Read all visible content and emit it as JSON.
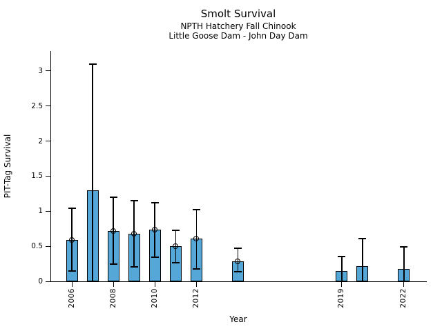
{
  "chart_data": {
    "type": "bar",
    "title": "Smolt Survival",
    "subtitle1": "NPTH Hatchery Fall Chinook",
    "subtitle2": "Little Goose Dam - John Day Dam",
    "xlabel": "Year",
    "ylabel": "PIT-Tag Survival",
    "x": [
      2006,
      2007,
      2008,
      2009,
      2010,
      2011,
      2012,
      2014,
      2019,
      2020,
      2022
    ],
    "values": [
      0.59,
      1.3,
      0.72,
      0.68,
      0.74,
      0.5,
      0.61,
      0.29,
      0.15,
      0.22,
      0.18
    ],
    "error_low": [
      0.15,
      0.0,
      0.25,
      0.21,
      0.34,
      0.27,
      0.18,
      0.14,
      0.0,
      0.0,
      0.0
    ],
    "error_high": [
      1.04,
      3.1,
      1.2,
      1.15,
      1.12,
      0.73,
      1.02,
      0.47,
      0.35,
      0.61,
      0.49
    ],
    "point_marker": [
      true,
      false,
      true,
      true,
      true,
      true,
      true,
      true,
      false,
      false,
      false
    ],
    "xlim": [
      2005.0,
      2023.1
    ],
    "ylim": [
      0,
      3.284
    ],
    "xticks": [
      2006,
      2008,
      2010,
      2012,
      2019,
      2022
    ],
    "xtick_labels": [
      "2006",
      "2008",
      "2010",
      "2012",
      "2019",
      "2022"
    ],
    "yticks": [
      0,
      0.5,
      1,
      1.5,
      2,
      2.5,
      3
    ],
    "ytick_labels": [
      "0",
      "0.5",
      "1",
      "1.5",
      "2",
      "2.5",
      "3"
    ],
    "bar_color": "#54A7D6",
    "edge_color": "#000000",
    "grid": false,
    "legend_position": "none"
  }
}
